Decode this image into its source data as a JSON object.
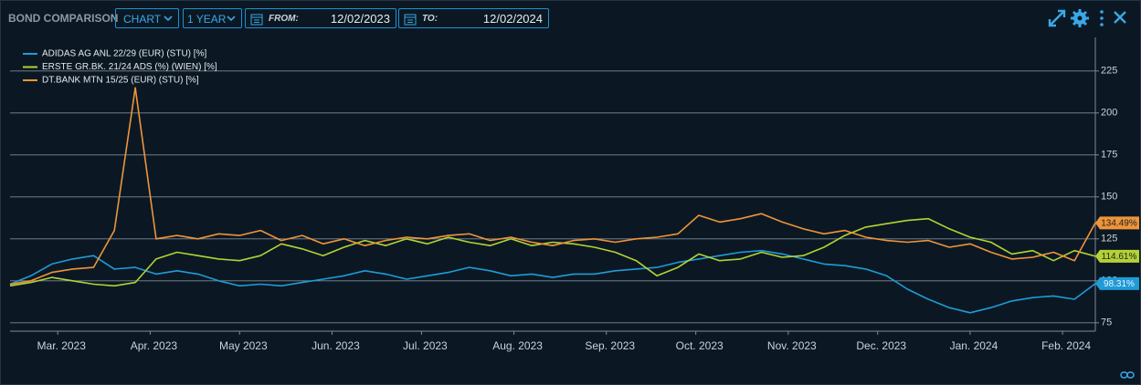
{
  "header": {
    "title": "BOND COMPARISON",
    "view": "CHART",
    "period": "1 YEAR",
    "from_label": "FROM:",
    "from": "12/02/2023",
    "to_label": "TO:",
    "to": "12/02/2024"
  },
  "chart_data": {
    "type": "line",
    "x": [
      "2023-02-13",
      "2023-02-20",
      "2023-02-27",
      "2023-03-06",
      "2023-03-13",
      "2023-03-20",
      "2023-03-27",
      "2023-04-03",
      "2023-04-10",
      "2023-04-17",
      "2023-04-24",
      "2023-05-01",
      "2023-05-08",
      "2023-05-15",
      "2023-05-22",
      "2023-05-29",
      "2023-06-05",
      "2023-06-12",
      "2023-06-19",
      "2023-06-26",
      "2023-07-03",
      "2023-07-10",
      "2023-07-17",
      "2023-07-24",
      "2023-07-31",
      "2023-08-07",
      "2023-08-14",
      "2023-08-21",
      "2023-08-28",
      "2023-09-04",
      "2023-09-11",
      "2023-09-18",
      "2023-09-25",
      "2023-10-02",
      "2023-10-09",
      "2023-10-16",
      "2023-10-23",
      "2023-10-30",
      "2023-11-06",
      "2023-11-13",
      "2023-11-20",
      "2023-11-27",
      "2023-12-04",
      "2023-12-11",
      "2023-12-18",
      "2023-12-25",
      "2024-01-01",
      "2024-01-08",
      "2024-01-15",
      "2024-01-22",
      "2024-01-29",
      "2024-02-05",
      "2024-02-12"
    ],
    "series": [
      {
        "name": "ADIDAS AG ANL 22/29 (EUR) (STU) [%]",
        "color": "#1f9bd7",
        "values": [
          98,
          103,
          110,
          113,
          115,
          107,
          108,
          104,
          106,
          104,
          100,
          97,
          98,
          97,
          99,
          101,
          103,
          106,
          104,
          101,
          103,
          105,
          108,
          106,
          103,
          104,
          102,
          104,
          104,
          106,
          107,
          108,
          111,
          113,
          115,
          117,
          118,
          116,
          113,
          110,
          109,
          107,
          103,
          95,
          89,
          84,
          81,
          84,
          88,
          90,
          91,
          89,
          98.31
        ],
        "value_labels": [
          null,
          null,
          null,
          null,
          null,
          null,
          null,
          null,
          null,
          null,
          null,
          null,
          null,
          null,
          null,
          null,
          null,
          null,
          null,
          null,
          null,
          null,
          null,
          null,
          null,
          null,
          null,
          null,
          null,
          null,
          null,
          null,
          null,
          null,
          null,
          null,
          null,
          null,
          null,
          null,
          null,
          null,
          null,
          null,
          null,
          null,
          null,
          null,
          null,
          null,
          null,
          null,
          "98.31%"
        ]
      },
      {
        "name": "ERSTE GR.BK. 21/24 ADS (%) (WIEN) [%]",
        "color": "#b4d235",
        "values": [
          97,
          99,
          102,
          100,
          98,
          97,
          99,
          113,
          117,
          115,
          113,
          112,
          115,
          122,
          119,
          115,
          120,
          124,
          121,
          125,
          122,
          126,
          123,
          121,
          125,
          121,
          123,
          122,
          120,
          117,
          112,
          103,
          108,
          116,
          112,
          113,
          117,
          114,
          115,
          120,
          127,
          132,
          134,
          136,
          137,
          131,
          126,
          123,
          116,
          118,
          112,
          118,
          114.61
        ],
        "value_labels": [
          null,
          null,
          null,
          null,
          null,
          null,
          null,
          null,
          null,
          null,
          null,
          null,
          null,
          null,
          null,
          null,
          null,
          null,
          null,
          null,
          null,
          null,
          null,
          null,
          null,
          null,
          null,
          null,
          null,
          null,
          null,
          null,
          null,
          null,
          null,
          null,
          null,
          null,
          null,
          null,
          null,
          null,
          null,
          null,
          null,
          null,
          null,
          null,
          null,
          null,
          null,
          null,
          "114.61%"
        ]
      },
      {
        "name": "DT.BANK MTN 15/25 (EUR) (STU) [%]",
        "color": "#ef943a",
        "values": [
          98,
          100,
          105,
          107,
          108,
          130,
          215,
          125,
          127,
          125,
          128,
          127,
          130,
          124,
          127,
          122,
          125,
          121,
          124,
          126,
          125,
          127,
          128,
          124,
          126,
          123,
          121,
          124,
          125,
          123,
          125,
          126,
          128,
          139,
          135,
          137,
          140,
          135,
          131,
          128,
          130,
          126,
          124,
          123,
          124,
          120,
          122,
          117,
          113,
          114,
          117,
          112,
          134.49
        ],
        "value_labels": [
          null,
          null,
          null,
          null,
          null,
          null,
          null,
          null,
          null,
          null,
          null,
          null,
          null,
          null,
          null,
          null,
          null,
          null,
          null,
          null,
          null,
          null,
          null,
          null,
          null,
          null,
          null,
          null,
          null,
          null,
          null,
          null,
          null,
          null,
          null,
          null,
          null,
          null,
          null,
          null,
          null,
          null,
          null,
          null,
          null,
          null,
          null,
          null,
          null,
          null,
          null,
          null,
          "134.49%"
        ]
      }
    ],
    "xlim": [
      "2023-02-13",
      "2024-02-12"
    ],
    "xticks": [
      {
        "value": "2023-03-01",
        "label": "Mar. 2023"
      },
      {
        "value": "2023-04-01",
        "label": "Apr. 2023"
      },
      {
        "value": "2023-05-01",
        "label": "May 2023"
      },
      {
        "value": "2023-06-01",
        "label": "Jun. 2023"
      },
      {
        "value": "2023-07-01",
        "label": "Jul. 2023"
      },
      {
        "value": "2023-08-01",
        "label": "Aug. 2023"
      },
      {
        "value": "2023-09-01",
        "label": "Sep. 2023"
      },
      {
        "value": "2023-10-01",
        "label": "Oct. 2023"
      },
      {
        "value": "2023-11-01",
        "label": "Nov. 2023"
      },
      {
        "value": "2023-12-01",
        "label": "Dec. 2023"
      },
      {
        "value": "2024-01-01",
        "label": "Jan. 2024"
      },
      {
        "value": "2024-02-01",
        "label": "Feb. 2024"
      }
    ],
    "ylim": [
      70,
      245
    ],
    "yticks": [
      75,
      100,
      125,
      150,
      175,
      200,
      225
    ],
    "grid": true,
    "legend": "top-left"
  }
}
